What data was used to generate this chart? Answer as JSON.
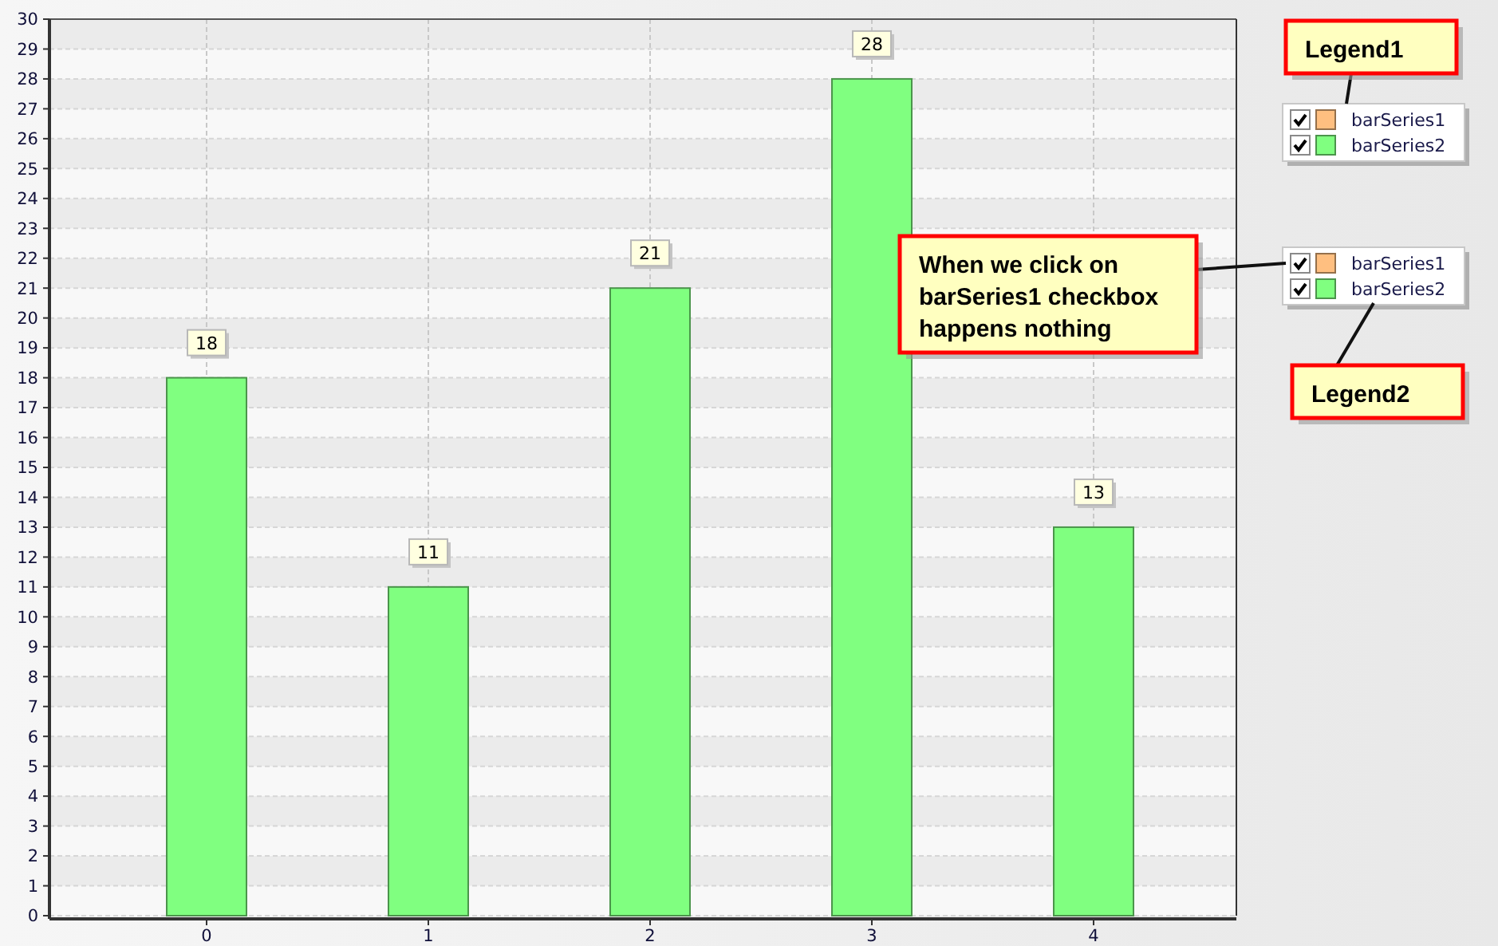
{
  "chart_data": {
    "type": "bar",
    "categories": [
      "0",
      "1",
      "2",
      "3",
      "4"
    ],
    "series": [
      {
        "name": "barSeries1",
        "color": "#ffbf80",
        "values": [
          null,
          null,
          null,
          null,
          null
        ]
      },
      {
        "name": "barSeries2",
        "color": "#80ff80",
        "values": [
          18,
          11,
          21,
          28,
          13
        ]
      }
    ],
    "ylim": [
      0,
      30
    ],
    "yticks": [
      0,
      1,
      2,
      3,
      4,
      5,
      6,
      7,
      8,
      9,
      10,
      11,
      12,
      13,
      14,
      15,
      16,
      17,
      18,
      19,
      20,
      21,
      22,
      23,
      24,
      25,
      26,
      27,
      28,
      29,
      30
    ],
    "grid": true,
    "legend": "right",
    "data_labels": true,
    "annotations": [
      "Legend1",
      "When we click on barSeries1 checkbox happens nothing",
      "Legend2"
    ]
  }
}
